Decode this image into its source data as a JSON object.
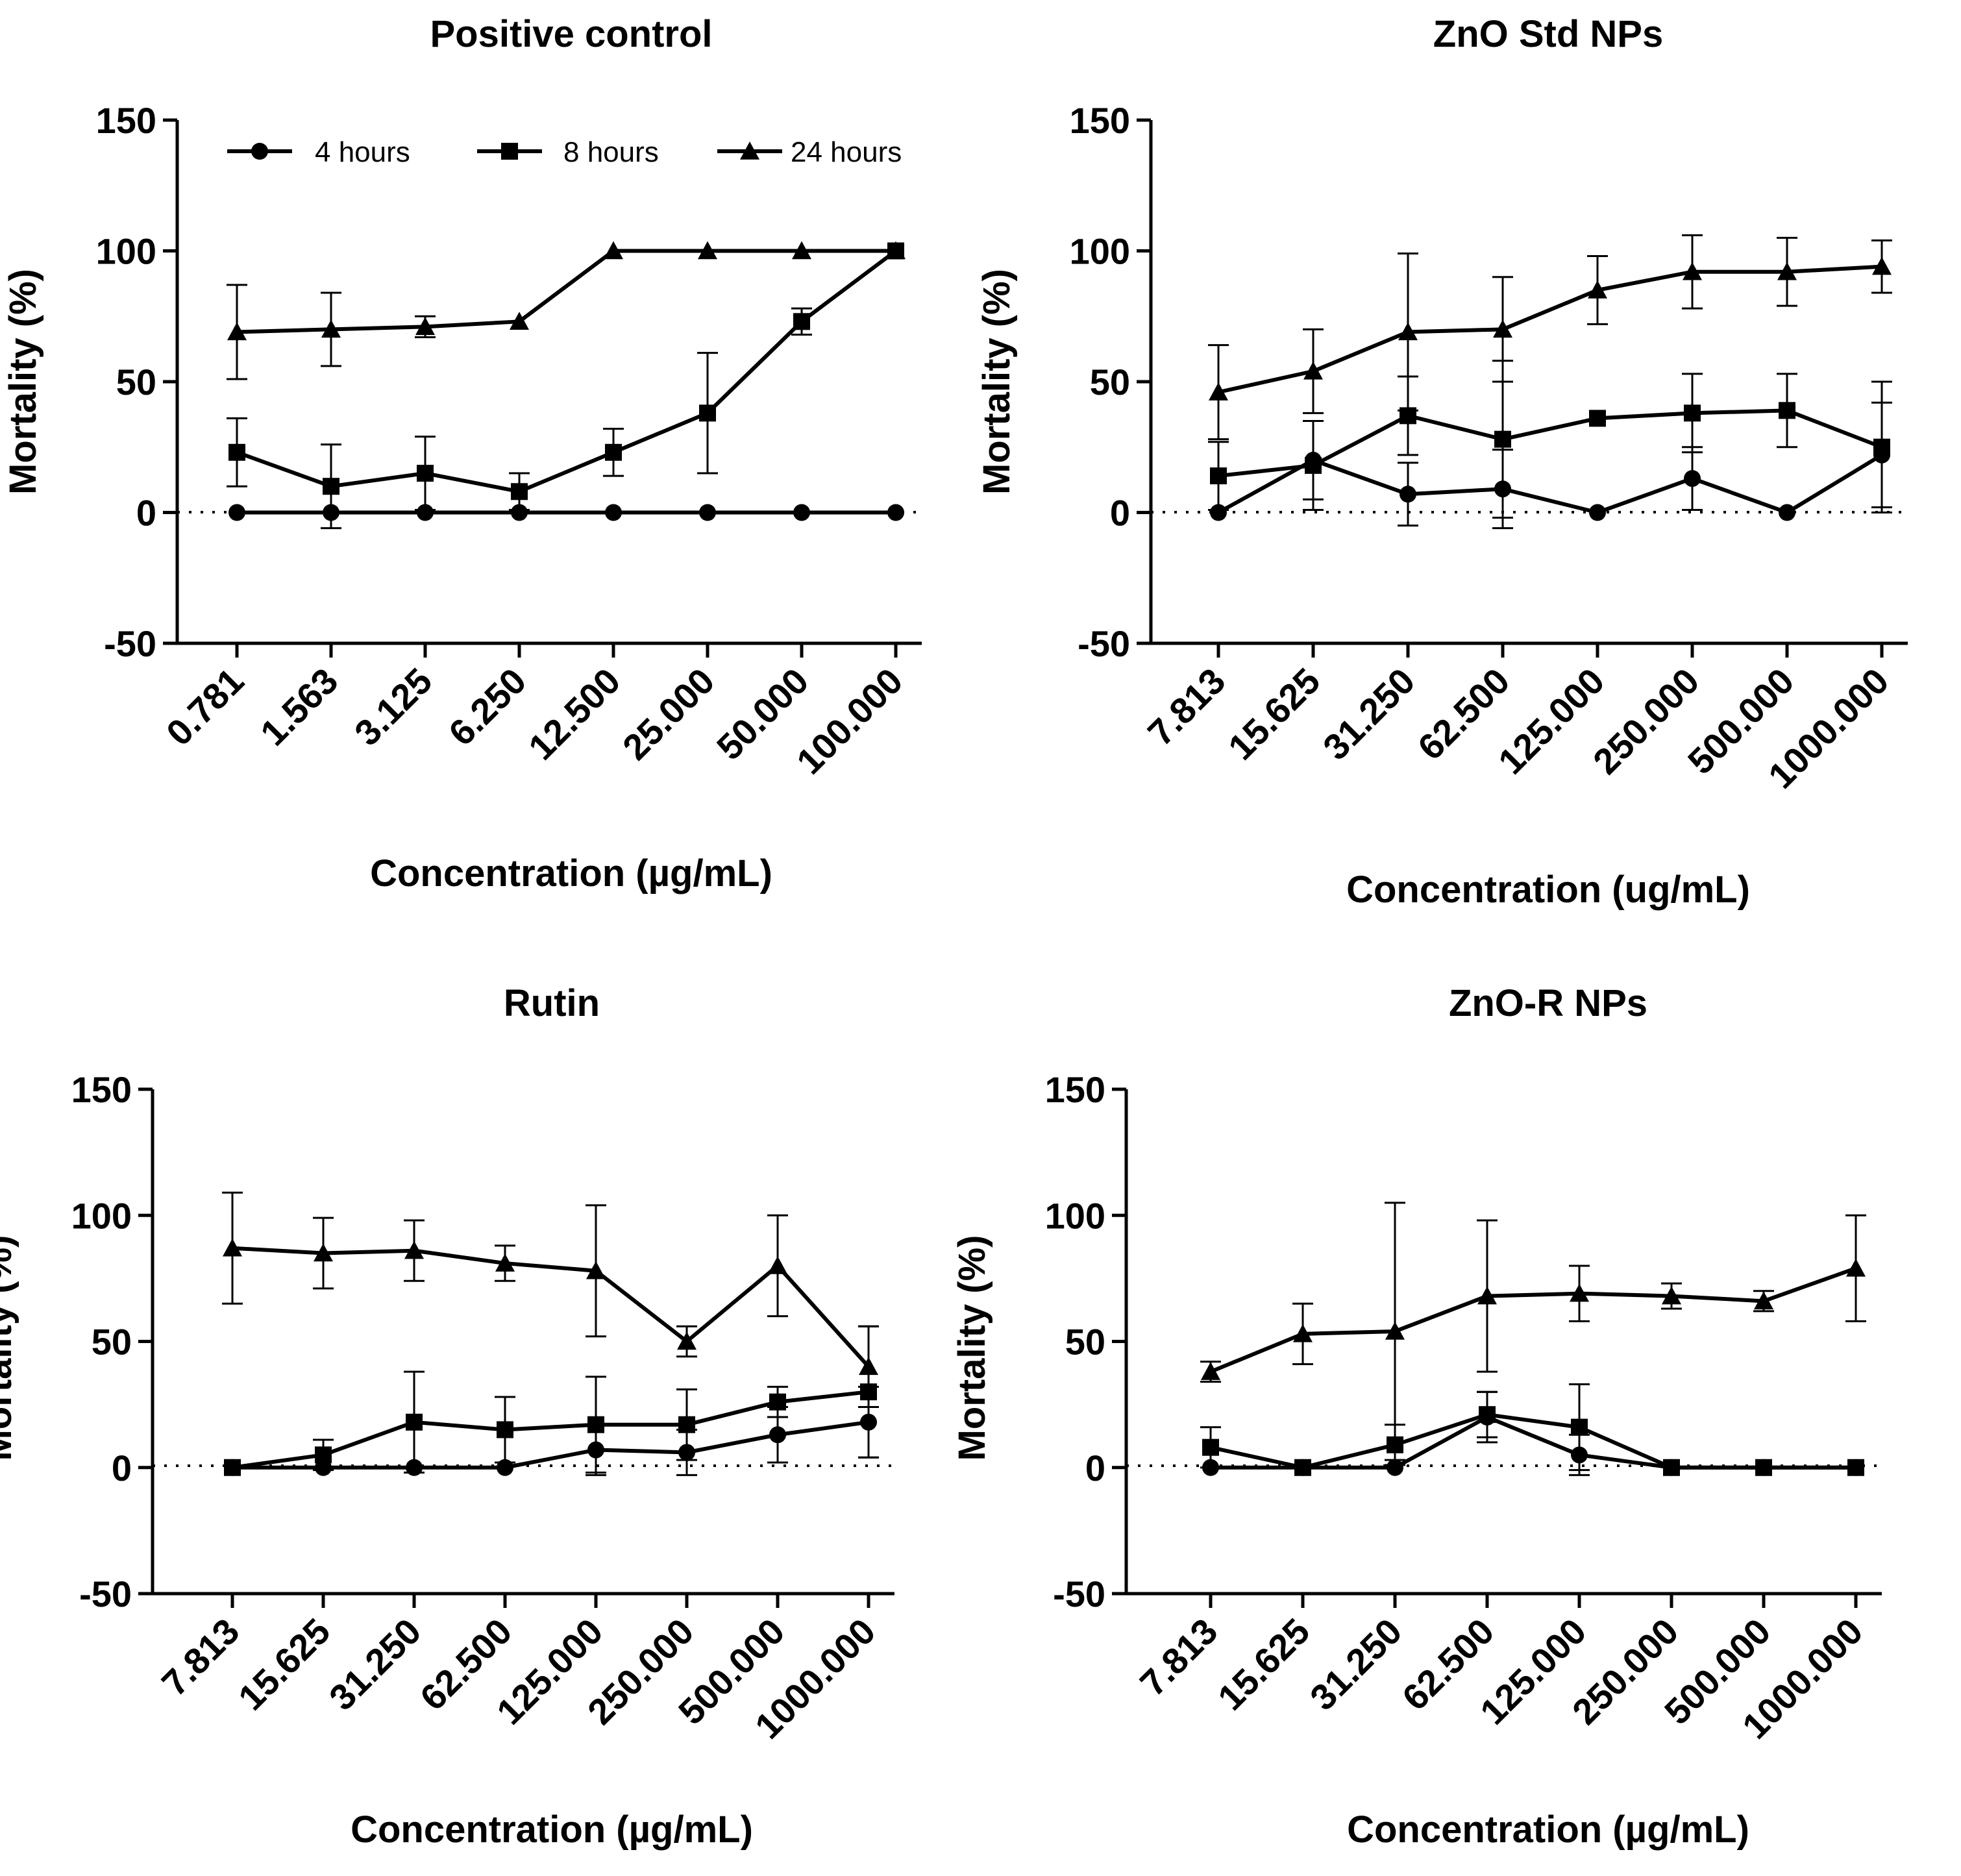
{
  "chart_data": [
    {
      "type": "line",
      "title": "Positive control",
      "xlabel": "Concentration (µg/mL)",
      "ylabel": "Mortality (%)",
      "ylim": [
        -50,
        150
      ],
      "yticks": [
        "-50",
        "0",
        "50",
        "100",
        "150"
      ],
      "categories": [
        "0.781",
        "1.563",
        "3.125",
        "6.250",
        "12.500",
        "25.000",
        "50.000",
        "100.000"
      ],
      "legend": {
        "position": "top",
        "entries": [
          "4 hours",
          "8 hours",
          "24 hours"
        ]
      },
      "series": [
        {
          "name": "4 hours",
          "marker": "circle",
          "values": [
            0,
            0,
            0,
            0,
            0,
            0,
            0,
            0
          ],
          "errors": [
            0,
            0,
            0,
            0,
            0,
            0,
            0,
            0
          ]
        },
        {
          "name": "8 hours",
          "marker": "square",
          "values": [
            23,
            10,
            15,
            8,
            23,
            38,
            73,
            100
          ],
          "errors": [
            13,
            16,
            14,
            7,
            9,
            23,
            5,
            0
          ]
        },
        {
          "name": "24 hours",
          "marker": "triangle",
          "values": [
            69,
            70,
            71,
            73,
            100,
            100,
            100,
            100
          ],
          "errors": [
            18,
            14,
            4,
            0,
            0,
            0,
            0,
            0
          ]
        }
      ]
    },
    {
      "type": "line",
      "title": "ZnO Std NPs",
      "xlabel": "Concentration (ug/mL)",
      "ylabel": "Mortality (%)",
      "ylim": [
        -50,
        150
      ],
      "yticks": [
        "-50",
        "0",
        "50",
        "100",
        "150"
      ],
      "categories": [
        "7.813",
        "15.625",
        "31.250",
        "62.500",
        "125.000",
        "250.000",
        "500.000",
        "1000.000"
      ],
      "series": [
        {
          "name": "4 hours",
          "marker": "circle",
          "values": [
            0,
            20,
            7,
            9,
            0,
            13,
            0,
            22
          ],
          "errors": [
            0,
            15,
            12,
            15,
            0,
            12,
            0,
            20
          ]
        },
        {
          "name": "8 hours",
          "marker": "square",
          "values": [
            14,
            18,
            37,
            28,
            36,
            38,
            39,
            25
          ],
          "errors": [
            13,
            17,
            15,
            30,
            0,
            15,
            14,
            25
          ]
        },
        {
          "name": "24 hours",
          "marker": "triangle",
          "values": [
            46,
            54,
            69,
            70,
            85,
            92,
            92,
            94
          ],
          "errors": [
            18,
            16,
            30,
            20,
            13,
            14,
            13,
            10
          ]
        }
      ]
    },
    {
      "type": "line",
      "title": "Rutin",
      "xlabel": "Concentration (µg/mL)",
      "ylabel": "Mortality (%)",
      "ylim": [
        -50,
        150
      ],
      "yticks": [
        "-50",
        "0",
        "50",
        "100",
        "150"
      ],
      "categories": [
        "7.813",
        "15.625",
        "31.250",
        "62.500",
        "125.000",
        "250.000",
        "500.000",
        "1000.000"
      ],
      "series": [
        {
          "name": "4 hours",
          "marker": "circle",
          "values": [
            0,
            0,
            0,
            0,
            7,
            6,
            13,
            18
          ],
          "errors": [
            0,
            0,
            0,
            0,
            10,
            9,
            11,
            14
          ]
        },
        {
          "name": "8 hours",
          "marker": "square",
          "values": [
            0,
            5,
            18,
            15,
            17,
            17,
            26,
            30
          ],
          "errors": [
            0,
            6,
            20,
            13,
            19,
            14,
            6,
            26
          ]
        },
        {
          "name": "24 hours",
          "marker": "triangle",
          "values": [
            87,
            85,
            86,
            81,
            78,
            50,
            80,
            40
          ],
          "errors": [
            22,
            14,
            12,
            7,
            26,
            6,
            20,
            16
          ]
        }
      ]
    },
    {
      "type": "line",
      "title": "ZnO-R NPs",
      "xlabel": "Concentration (µg/mL)",
      "ylabel": "Mortality (%)",
      "ylim": [
        -50,
        150
      ],
      "yticks": [
        "-50",
        "0",
        "50",
        "100",
        "150"
      ],
      "categories": [
        "7.813",
        "15.625",
        "31.250",
        "62.500",
        "125.000",
        "250.000",
        "500.000",
        "1000.000"
      ],
      "series": [
        {
          "name": "4 hours",
          "marker": "circle",
          "values": [
            0,
            0,
            0,
            20,
            5,
            0,
            0,
            0
          ],
          "errors": [
            0,
            0,
            0,
            10,
            8,
            0,
            0,
            0
          ]
        },
        {
          "name": "8 hours",
          "marker": "square",
          "values": [
            8,
            0,
            9,
            21,
            16,
            0,
            0,
            0
          ],
          "errors": [
            8,
            0,
            8,
            9,
            17,
            0,
            0,
            0
          ]
        },
        {
          "name": "24 hours",
          "marker": "triangle",
          "values": [
            38,
            53,
            54,
            68,
            69,
            68,
            66,
            79
          ],
          "errors": [
            4,
            12,
            51,
            30,
            11,
            5,
            4,
            21
          ]
        }
      ]
    }
  ]
}
